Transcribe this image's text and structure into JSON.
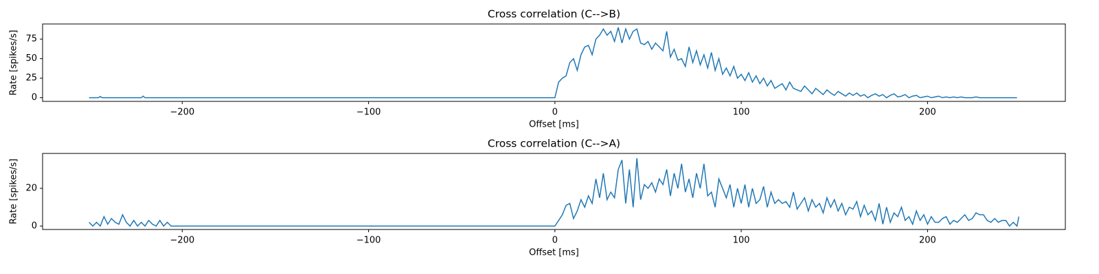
{
  "chart_data": [
    {
      "type": "line",
      "title": "Cross correlation (C-->B)",
      "x_label": "Offset [ms]",
      "y_label": "Rate [spikes/s]",
      "x": [
        -250,
        -245,
        -244,
        -243,
        -222,
        -221,
        -220,
        -1,
        0,
        2,
        4,
        6,
        8,
        10,
        12,
        14,
        16,
        18,
        20,
        22,
        24,
        26,
        28,
        30,
        32,
        34,
        36,
        38,
        40,
        42,
        44,
        46,
        48,
        50,
        52,
        54,
        56,
        58,
        60,
        62,
        64,
        66,
        68,
        70,
        72,
        74,
        76,
        78,
        80,
        82,
        84,
        86,
        88,
        90,
        92,
        94,
        96,
        98,
        100,
        102,
        104,
        106,
        108,
        110,
        112,
        114,
        116,
        118,
        120,
        122,
        124,
        126,
        128,
        130,
        132,
        134,
        136,
        138,
        140,
        142,
        144,
        146,
        148,
        150,
        152,
        154,
        156,
        158,
        160,
        162,
        164,
        166,
        168,
        170,
        172,
        174,
        176,
        178,
        180,
        182,
        184,
        186,
        188,
        190,
        192,
        194,
        196,
        198,
        200,
        202,
        204,
        206,
        208,
        210,
        212,
        214,
        216,
        218,
        220,
        222,
        224,
        226,
        228,
        230,
        232,
        234,
        236,
        238,
        240,
        242,
        244,
        246,
        248
      ],
      "series": [
        {
          "name": "C-->B",
          "color": "#1f77b4",
          "values": [
            0,
            0,
            1.5,
            0,
            0,
            2,
            0,
            0,
            0,
            20,
            25,
            28,
            45,
            50,
            35,
            55,
            65,
            67,
            55,
            75,
            80,
            88,
            80,
            85,
            72,
            90,
            70,
            88,
            75,
            85,
            88,
            70,
            68,
            72,
            62,
            70,
            65,
            60,
            85,
            52,
            62,
            48,
            50,
            40,
            65,
            45,
            60,
            42,
            55,
            38,
            58,
            35,
            50,
            30,
            38,
            28,
            40,
            25,
            30,
            22,
            32,
            20,
            28,
            18,
            25,
            15,
            22,
            12,
            15,
            18,
            10,
            20,
            12,
            10,
            8,
            15,
            10,
            5,
            12,
            8,
            4,
            10,
            6,
            3,
            8,
            5,
            2,
            6,
            3,
            6,
            2,
            4,
            0,
            3,
            5,
            2,
            4,
            0,
            3,
            5,
            1,
            2,
            4,
            0,
            2,
            3,
            0,
            1,
            2,
            0,
            1,
            2,
            0,
            1,
            0,
            1,
            0,
            1,
            0,
            0,
            0,
            1,
            0,
            0,
            0,
            0,
            0,
            0,
            0,
            0,
            0,
            0,
            0
          ]
        }
      ],
      "xlim": [
        -274.95,
        273.95
      ],
      "ylim": [
        -4.7,
        94.4
      ],
      "xticks": [
        {
          "value": -200,
          "label": "−200"
        },
        {
          "value": -100,
          "label": "−100"
        },
        0,
        100,
        200
      ],
      "yticks": [
        0,
        25,
        50,
        75
      ]
    },
    {
      "type": "line",
      "title": "Cross correlation (C-->A)",
      "x_label": "Offset [ms]",
      "y_label": "Rate [spikes/s]",
      "x": [
        -250,
        -248,
        -246,
        -244,
        -242,
        -240,
        -238,
        -236,
        -234,
        -232,
        -230,
        -228,
        -226,
        -224,
        -222,
        -220,
        -218,
        -216,
        -214,
        -212,
        -210,
        -208,
        -206,
        0,
        2,
        4,
        6,
        8,
        10,
        12,
        14,
        16,
        18,
        20,
        22,
        24,
        26,
        28,
        30,
        32,
        34,
        36,
        38,
        40,
        42,
        44,
        46,
        48,
        50,
        52,
        54,
        56,
        58,
        60,
        62,
        64,
        66,
        68,
        70,
        72,
        74,
        76,
        78,
        80,
        82,
        84,
        86,
        88,
        90,
        92,
        94,
        96,
        98,
        100,
        102,
        104,
        106,
        108,
        110,
        112,
        114,
        116,
        118,
        120,
        122,
        124,
        126,
        128,
        130,
        132,
        134,
        136,
        138,
        140,
        142,
        144,
        146,
        148,
        150,
        152,
        154,
        156,
        158,
        160,
        162,
        164,
        166,
        168,
        170,
        172,
        174,
        176,
        178,
        180,
        182,
        184,
        186,
        188,
        190,
        192,
        194,
        196,
        198,
        200,
        202,
        204,
        206,
        208,
        210,
        212,
        214,
        216,
        218,
        220,
        222,
        224,
        226,
        228,
        230,
        232,
        234,
        236,
        238,
        240,
        242,
        244,
        246,
        248,
        249
      ],
      "series": [
        {
          "name": "C-->A",
          "color": "#1f77b4",
          "values": [
            2,
            0,
            2,
            0,
            5,
            1,
            4,
            2,
            1,
            6,
            2,
            0,
            3,
            0,
            2,
            0,
            3,
            1,
            0,
            3,
            0,
            2,
            0,
            0,
            3,
            6,
            11,
            12,
            4,
            8,
            14,
            10,
            16,
            12,
            25,
            15,
            28,
            14,
            18,
            15,
            30,
            35,
            12,
            30,
            10,
            36,
            14,
            22,
            20,
            23,
            18,
            25,
            22,
            30,
            16,
            28,
            20,
            33,
            18,
            25,
            15,
            28,
            20,
            33,
            16,
            18,
            10,
            25,
            20,
            15,
            22,
            10,
            20,
            12,
            22,
            10,
            20,
            12,
            14,
            21,
            10,
            18,
            12,
            14,
            12,
            13,
            10,
            18,
            9,
            12,
            15,
            8,
            14,
            10,
            12,
            7,
            15,
            10,
            14,
            8,
            12,
            6,
            10,
            9,
            13,
            5,
            11,
            6,
            8,
            3,
            12,
            1,
            10,
            2,
            7,
            5,
            10,
            3,
            5,
            1,
            8,
            3,
            6,
            1,
            5,
            2,
            2,
            4,
            5,
            1,
            3,
            2,
            4,
            6,
            3,
            4,
            7,
            6,
            6,
            3,
            2,
            4,
            2,
            3,
            3,
            0,
            2,
            0,
            5
          ]
        }
      ],
      "xlim": [
        -274.95,
        273.95
      ],
      "ylim": [
        -1.8,
        38.5
      ],
      "xticks": [
        {
          "value": -200,
          "label": "−200"
        },
        {
          "value": -100,
          "label": "−100"
        },
        0,
        100,
        200
      ],
      "yticks": [
        0,
        20
      ]
    }
  ]
}
